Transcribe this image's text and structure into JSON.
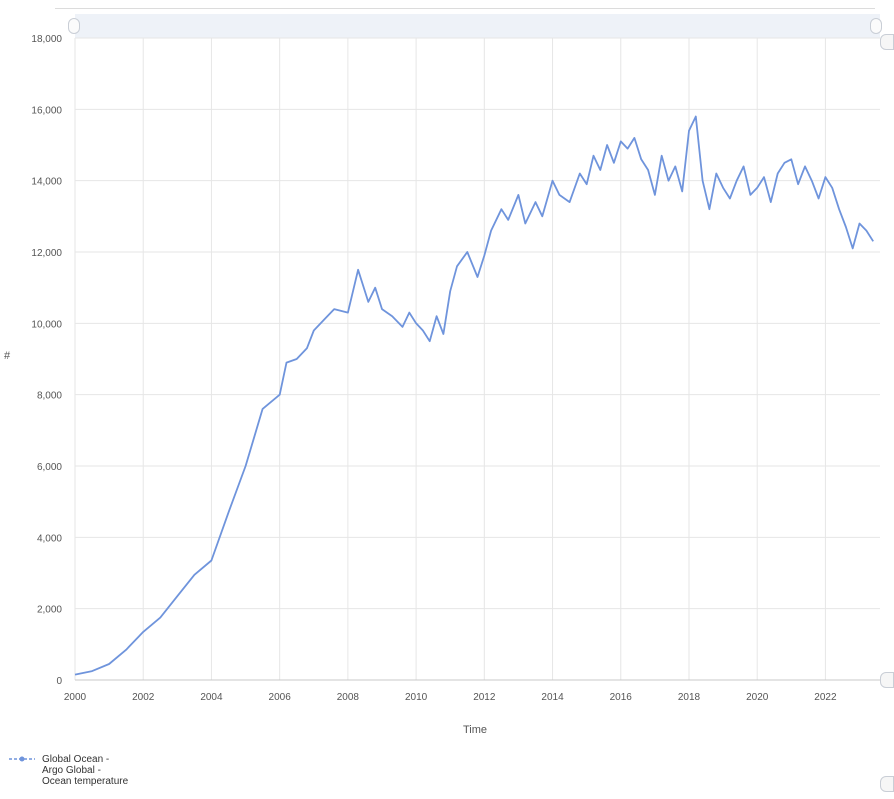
{
  "chart_data": {
    "type": "line",
    "title": "",
    "xlabel": "Time",
    "ylabel": "#",
    "xlim": [
      2000,
      2023.6
    ],
    "ylim": [
      0,
      18000
    ],
    "x_ticks": [
      2000,
      2002,
      2004,
      2006,
      2008,
      2010,
      2012,
      2014,
      2016,
      2018,
      2020,
      2022
    ],
    "x_tick_labels": [
      "2000",
      "2002",
      "2004",
      "2006",
      "2008",
      "2010",
      "2012",
      "2014",
      "2016",
      "2018",
      "2020",
      "2022"
    ],
    "y_ticks": [
      0,
      2000,
      4000,
      6000,
      8000,
      10000,
      12000,
      14000,
      16000,
      18000
    ],
    "y_tick_labels": [
      "0",
      "2,000",
      "4,000",
      "6,000",
      "8,000",
      "10,000",
      "12,000",
      "14,000",
      "16,000",
      "18,000"
    ],
    "grid": true,
    "legend_position": "bottom-left",
    "series": [
      {
        "name": "Global Ocean - Argo Global - Ocean temperature",
        "color": "#6f94dc",
        "x": [
          2000.0,
          2000.5,
          2001.0,
          2001.5,
          2002.0,
          2002.5,
          2003.0,
          2003.5,
          2004.0,
          2004.5,
          2005.0,
          2005.5,
          2006.0,
          2006.2,
          2006.5,
          2006.8,
          2007.0,
          2007.3,
          2007.6,
          2008.0,
          2008.3,
          2008.6,
          2008.8,
          2009.0,
          2009.3,
          2009.6,
          2009.8,
          2010.0,
          2010.2,
          2010.4,
          2010.6,
          2010.8,
          2011.0,
          2011.2,
          2011.5,
          2011.8,
          2012.0,
          2012.2,
          2012.5,
          2012.7,
          2013.0,
          2013.2,
          2013.5,
          2013.7,
          2014.0,
          2014.2,
          2014.5,
          2014.8,
          2015.0,
          2015.2,
          2015.4,
          2015.6,
          2015.8,
          2016.0,
          2016.2,
          2016.4,
          2016.6,
          2016.8,
          2017.0,
          2017.2,
          2017.4,
          2017.6,
          2017.8,
          2018.0,
          2018.2,
          2018.4,
          2018.6,
          2018.8,
          2019.0,
          2019.2,
          2019.4,
          2019.6,
          2019.8,
          2020.0,
          2020.2,
          2020.4,
          2020.6,
          2020.8,
          2021.0,
          2021.2,
          2021.4,
          2021.6,
          2021.8,
          2022.0,
          2022.2,
          2022.4,
          2022.6,
          2022.8,
          2023.0,
          2023.2,
          2023.4
        ],
        "values": [
          150,
          250,
          450,
          850,
          1350,
          1750,
          2350,
          2950,
          3350,
          4700,
          6000,
          7600,
          8000,
          8900,
          9000,
          9300,
          9800,
          10100,
          10400,
          10300,
          11500,
          10600,
          11000,
          10400,
          10200,
          9900,
          10300,
          10000,
          9800,
          9500,
          10200,
          9700,
          10900,
          11600,
          12000,
          11300,
          11900,
          12600,
          13200,
          12900,
          13600,
          12800,
          13400,
          13000,
          14000,
          13600,
          13400,
          14200,
          13900,
          14700,
          14300,
          15000,
          14500,
          15100,
          14900,
          15200,
          14600,
          14300,
          13600,
          14700,
          14000,
          14400,
          13700,
          15400,
          15800,
          14000,
          13200,
          14200,
          13800,
          13500,
          14000,
          14400,
          13600,
          13800,
          14100,
          13400,
          14200,
          14500,
          14600,
          13900,
          14400,
          14000,
          13500,
          14100,
          13800,
          13200,
          12700,
          12100,
          12800,
          12600,
          12300
        ]
      }
    ]
  },
  "legend": {
    "label": "Global Ocean -\nArgo Global -\nOcean temperature"
  }
}
